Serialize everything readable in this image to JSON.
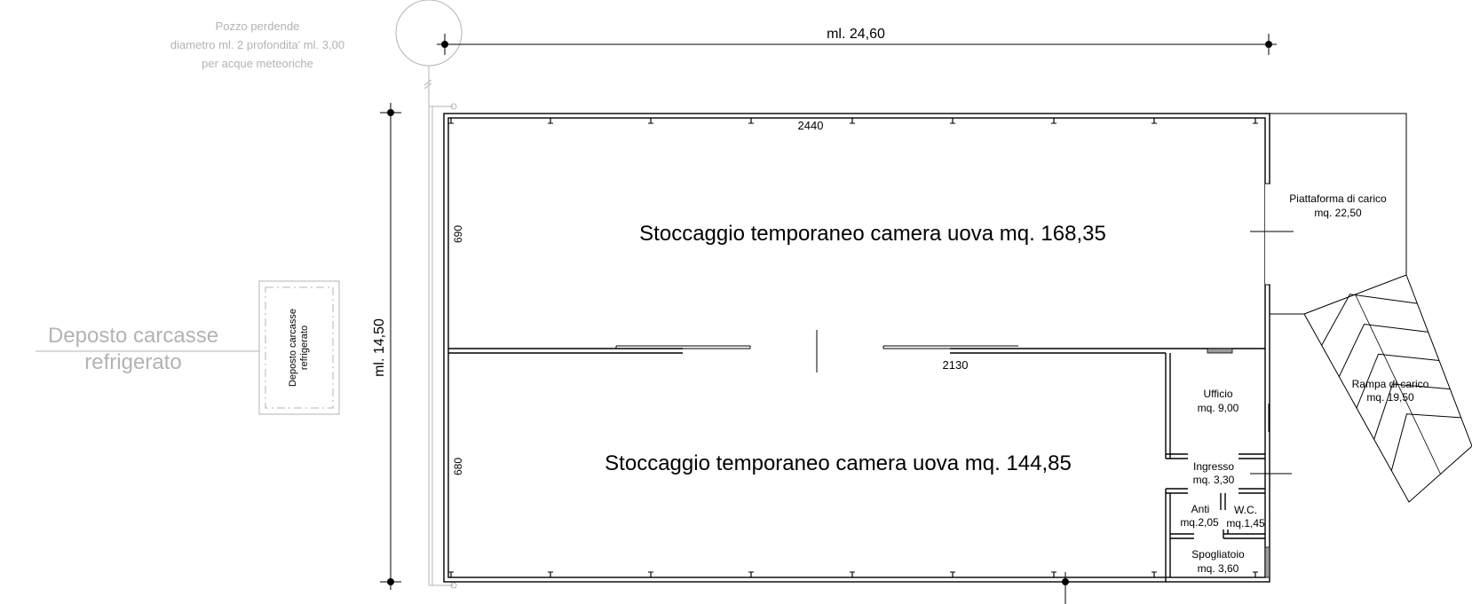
{
  "dimensions": {
    "width_label": "ml. 24,60",
    "height_label": "ml. 14,50",
    "top_inner": "2440",
    "middle_wall": "2130",
    "upper_height": "690",
    "lower_height": "680"
  },
  "well": {
    "line1": "Pozzo perdende",
    "line2": "diametro ml. 2 profondita' ml. 3,00",
    "line3": "per acque meteoriche"
  },
  "carcass": {
    "large_line1": "Deposto carcasse",
    "large_line2": "refrigerato",
    "small_line1": "Deposto carcasse",
    "small_line2": "refrigerato"
  },
  "rooms": {
    "upper_storage": "Stoccaggio temporaneo camera uova  mq. 168,35",
    "lower_storage": "Stoccaggio temporaneo camera uova mq. 144,85",
    "platform_name": "Piattaforma di carico",
    "platform_area": "mq. 22,50",
    "ramp_name": "Rampa di carico",
    "ramp_area": "mq. 19,50",
    "office_name": "Ufficio",
    "office_area": "mq. 9,00",
    "entrance_name": "Ingresso",
    "entrance_area": "mq. 3,30",
    "anti_name": "Anti",
    "anti_area": "mq.2,05",
    "wc_name": "W.C.",
    "wc_area": "mq.1,45",
    "locker_name": "Spogliatoio",
    "locker_area": "mq. 3,60"
  }
}
